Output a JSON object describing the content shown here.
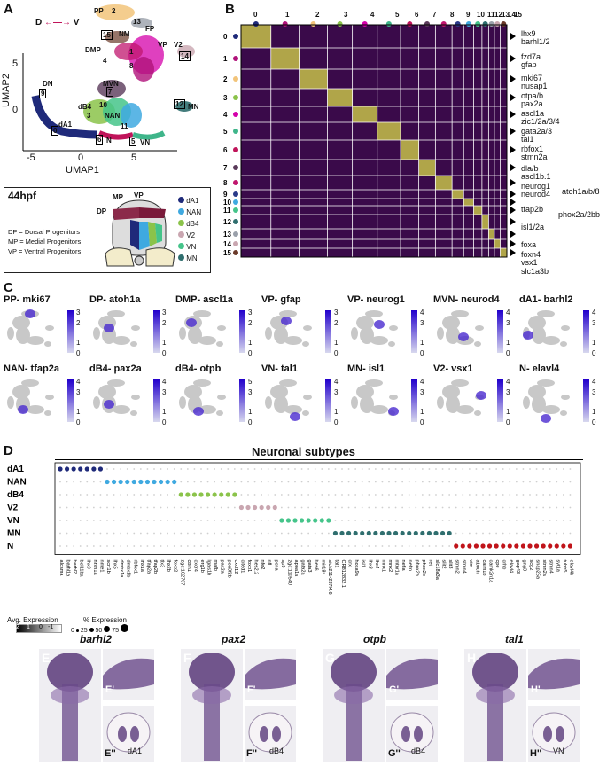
{
  "panels": {
    "A": "A",
    "B": "B",
    "C": "C",
    "D": "D",
    "E": "E",
    "F": "F",
    "G": "G",
    "H": "H",
    "E1": "E'",
    "E2": "E''",
    "F1": "F'",
    "F2": "F''",
    "G1": "G'",
    "G2": "G''",
    "H1": "H'",
    "H2": "H''"
  },
  "umap": {
    "xlabel": "UMAP1",
    "ylabel": "UMAP2",
    "xticks": [
      "-5",
      "0",
      "5"
    ],
    "yticks": [
      "5",
      "0"
    ],
    "dv_d": "D",
    "dv_v": "V",
    "labels": [
      "PP",
      "2",
      "13",
      "FP",
      "15",
      "NM",
      "DMP",
      "VP",
      "4",
      "1",
      "8",
      "V2",
      "14",
      "DN",
      "9",
      "MVN",
      "7",
      "dB4",
      "10",
      "3",
      "NAN",
      "11",
      "dA1",
      "0",
      "12",
      "MN",
      "6",
      "N",
      "5",
      "VN"
    ]
  },
  "legend": {
    "stage": "44hpf",
    "defs": [
      "DP = Dorsal Progenitors",
      "MP = Medial Progenitors",
      "VP = Ventral Progenitors"
    ],
    "schematic_labels": [
      "MP",
      "VP",
      "DP"
    ],
    "items": [
      {
        "name": "dA1",
        "color": "#1f2a7a"
      },
      {
        "name": "NAN",
        "color": "#3fa9e0"
      },
      {
        "name": "dB4",
        "color": "#8bc34a"
      },
      {
        "name": "V2",
        "color": "#c9a6b0"
      },
      {
        "name": "VN",
        "color": "#45c48a"
      },
      {
        "name": "MN",
        "color": "#2f6e6e"
      }
    ]
  },
  "heatmap": {
    "clusters": [
      "0",
      "1",
      "2",
      "3",
      "4",
      "5",
      "6",
      "7",
      "8",
      "9",
      "10",
      "11",
      "12",
      "13",
      "14",
      "15"
    ],
    "cluster_colors": [
      "#1f2a7a",
      "#b0127a",
      "#f2c47a",
      "#8bc34a",
      "#d400aa",
      "#3fb58a",
      "#c0145a",
      "#5a3a5a",
      "#c0166e",
      "#2b3a8a",
      "#3fa9e0",
      "#45c48a",
      "#2f6e6e",
      "#9aa0aa",
      "#c9a6b0",
      "#6a3a2a"
    ],
    "genes": [
      "lhx9\nbarhl1/2",
      "fzd7a\ngfap",
      "mki67\nnusap1",
      "otpa/b\npax2a",
      "ascl1a\nzic1/2a/3/4",
      "gata2a/3\ntal1",
      "rbfox1\nstmn2a",
      "dla/b\nascl1b.1",
      "neurog1\nneurod4",
      "atoh1a/b/8",
      "tfap2b",
      "phox2a/2bb",
      "isl1/2a",
      "foxa",
      "foxn4\nvsx1",
      "slc1a3b"
    ]
  },
  "features": [
    {
      "title": "PP- mki67",
      "max": "3",
      "mid": "2",
      "low": "1",
      "zero": "0"
    },
    {
      "title": "DP- atoh1a",
      "max": "3",
      "mid": "2",
      "low": "1",
      "zero": "0"
    },
    {
      "title": "DMP- ascl1a",
      "max": "3",
      "mid": "2",
      "low": "1",
      "zero": "0"
    },
    {
      "title": "VP- gfap",
      "max": "3",
      "mid": "2",
      "low": "1",
      "zero": "0"
    },
    {
      "title": "VP- neurog1",
      "max": "4",
      "mid": "3",
      "low": "1",
      "zero": "0"
    },
    {
      "title": "MVN- neurod4",
      "max": "4",
      "mid": "3",
      "low": "1",
      "zero": "0"
    },
    {
      "title": "dA1- barhl2",
      "max": "4",
      "mid": "3",
      "low": "1",
      "zero": "0"
    },
    {
      "title": "NAN- tfap2a",
      "max": "4",
      "mid": "3",
      "low": "1",
      "zero": "0"
    },
    {
      "title": "dB4- pax2a",
      "max": "4",
      "mid": "3",
      "low": "1",
      "zero": "0"
    },
    {
      "title": "dB4- otpb",
      "max": "5",
      "mid": "3",
      "low": "1",
      "zero": "0"
    },
    {
      "title": "VN- tal1",
      "max": "4",
      "mid": "3",
      "low": "1",
      "zero": "0"
    },
    {
      "title": "MN- isl1",
      "max": "4",
      "mid": "3",
      "low": "1",
      "zero": "0"
    },
    {
      "title": "V2- vsx1",
      "max": "4",
      "mid": "3",
      "low": "1",
      "zero": "0"
    },
    {
      "title": "N- elavl4",
      "max": "4",
      "mid": "3",
      "low": "1",
      "zero": "0"
    }
  ],
  "dotplot": {
    "title": "Neuronal subtypes",
    "rows": [
      "dA1",
      "NAN",
      "dB4",
      "V2",
      "VN",
      "MN",
      "N"
    ],
    "genes": [
      "alcama",
      "barhl1a",
      "barhl2",
      "bcl11ba",
      "lhx9",
      "nrxn1a",
      "nme1",
      "scrt1b",
      "lhx5",
      "dmbx1a",
      "dmbx1b",
      "rbfox1",
      "lhx1a",
      "tfap2a",
      "tfap2b",
      "tlx3",
      "lhx2b",
      "foxp2",
      "zgc:162707",
      "cbln1",
      "cxcr4",
      "erg1b",
      "lgals1b",
      "mafb",
      "pax2a",
      "pou3f2b",
      "cxcl12",
      "cited1",
      "foxb1",
      "hes2.2",
      "nfe2",
      "nfl",
      "pcna",
      "sp9",
      "zgc:110540",
      "apoa1a",
      "gata2a",
      "gata3",
      "hes6",
      "mir184",
      "sich211-237l4.6",
      "tal1",
      "CR812832.1",
      "crx",
      "hoxa9a",
      "isl1",
      "lhx3",
      "lhx4",
      "mnx1",
      "mnx2",
      "mtnr1a",
      "nefla",
      "nefm",
      "phox2a",
      "phox2b",
      "ret",
      "slc18a3a",
      "slit2",
      "slit3",
      "stmn2",
      "stmn4",
      "vim",
      "aboch",
      "calm1b",
      "camk2n1a",
      "cpe",
      "crhb",
      "elavl4",
      "gap43",
      "gng3",
      "scg2",
      "snap25a",
      "stmn2a",
      "stmn4",
      "syt1a",
      "tubb5",
      "elavl4b"
    ],
    "legend_expr": "Avg. Expression",
    "legend_expr_ticks": [
      "2",
      "1",
      "0",
      "-1"
    ],
    "legend_pct": "% Expression",
    "legend_pct_ticks": [
      "0",
      "25",
      "50",
      "75"
    ]
  },
  "ish": [
    {
      "title": "barhl2",
      "main": "E",
      "top": "E'",
      "bottom": "E''",
      "region": "dA1"
    },
    {
      "title": "pax2",
      "main": "F",
      "top": "F'",
      "bottom": "F''",
      "region": "dB4"
    },
    {
      "title": "otpb",
      "main": "G",
      "top": "G'",
      "bottom": "G''",
      "region": "dB4"
    },
    {
      "title": "tal1",
      "main": "H",
      "top": "H'",
      "bottom": "H''",
      "region": "VN"
    }
  ]
}
